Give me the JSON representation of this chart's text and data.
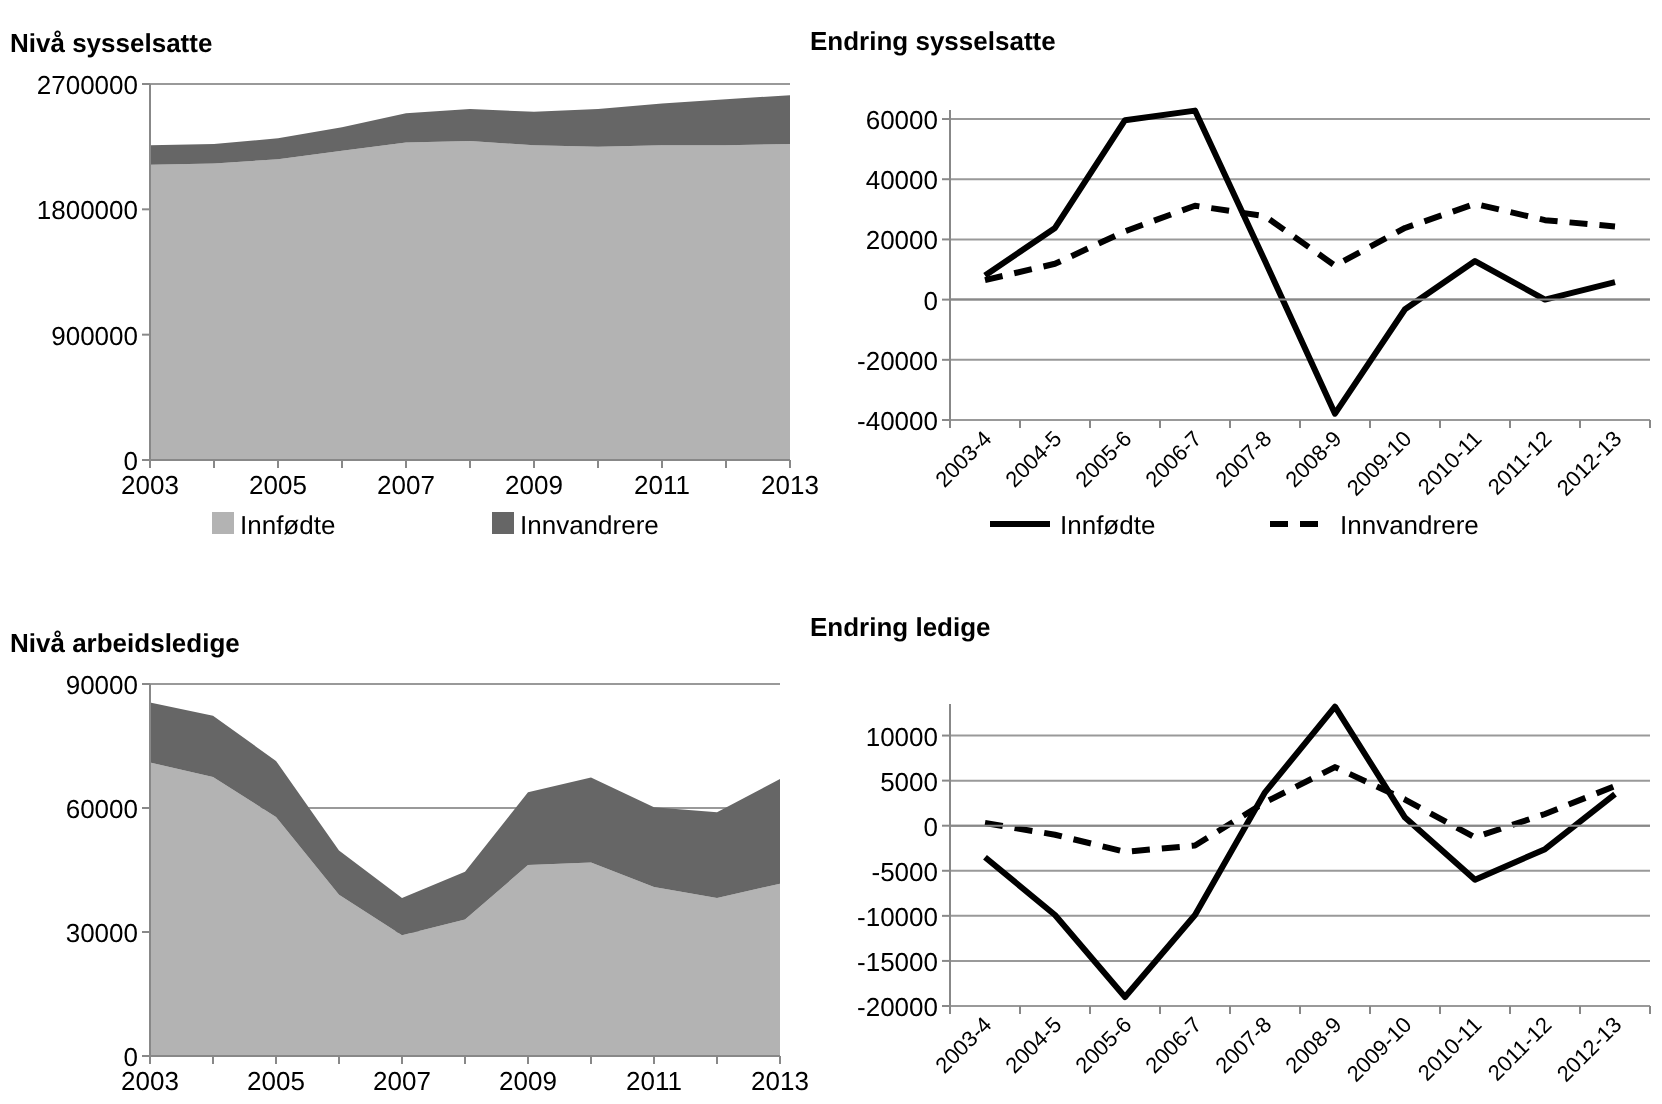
{
  "chart_data": [
    {
      "type": "area",
      "title": "Nivå sysselsatte",
      "stacked": true,
      "x": [
        2003,
        2004,
        2005,
        2006,
        2007,
        2008,
        2009,
        2010,
        2011,
        2012,
        2013
      ],
      "series": [
        {
          "name": "Innfødte",
          "color": "#b3b3b3",
          "values": [
            2120000,
            2130000,
            2160000,
            2220000,
            2280000,
            2290000,
            2260000,
            2250000,
            2260000,
            2260000,
            2270000
          ]
        },
        {
          "name": "Innvandrere",
          "color": "#666666",
          "values": [
            140000,
            140000,
            150000,
            170000,
            210000,
            230000,
            240000,
            270000,
            300000,
            330000,
            350000
          ]
        }
      ],
      "xlim": [
        2003,
        2013
      ],
      "xticks": [
        2003,
        {
          "value": 2004,
          "label": null
        },
        2005,
        {
          "value": 2006,
          "label": null
        },
        2007,
        {
          "value": 2008,
          "label": null
        },
        2009,
        {
          "value": 2010,
          "label": null
        },
        2011,
        {
          "value": 2012,
          "label": null
        },
        2013
      ],
      "ylim": [
        0,
        2700000
      ],
      "yticks": [
        0,
        900000,
        1800000,
        2700000
      ],
      "grid": "y",
      "legend": "bottom"
    },
    {
      "type": "line",
      "title": "Endring sysselsatte",
      "categories": [
        "2003-4",
        "2004-5",
        "2005-6",
        "2006-7",
        "2007-8",
        "2008-9",
        "2009-10",
        "2010-11",
        "2011-12",
        "2012-13"
      ],
      "series": [
        {
          "name": "Innfødte",
          "color": "#000000",
          "line_style": "solid",
          "values": [
            8000,
            23800,
            59600,
            62800,
            12800,
            -37900,
            -3200,
            12800,
            0,
            5800
          ]
        },
        {
          "name": "Innvandrere",
          "color": "#000000",
          "line_style": "dashed",
          "values": [
            6500,
            11900,
            22700,
            31200,
            27700,
            11300,
            23800,
            31800,
            26400,
            24300
          ]
        }
      ],
      "ylim": [
        -40000,
        63000
      ],
      "yticks": [
        -40000,
        -20000,
        0,
        20000,
        40000,
        60000
      ],
      "grid": "y",
      "legend": "bottom",
      "marker": "none"
    },
    {
      "type": "area",
      "title": "Nivå arbeidsledige",
      "stacked": true,
      "x": [
        2003,
        2004,
        2005,
        2006,
        2007,
        2008,
        2009,
        2010,
        2011,
        2012,
        2013
      ],
      "series": [
        {
          "color": "#b3b3b3",
          "values": [
            71000,
            67500,
            57800,
            39000,
            29200,
            33000,
            46200,
            46800,
            40900,
            38200,
            41700
          ]
        },
        {
          "color": "#666666",
          "values": [
            14500,
            14800,
            13600,
            10700,
            9000,
            11600,
            17600,
            20600,
            19300,
            20800,
            25300
          ]
        }
      ],
      "xlim": [
        2003,
        2013
      ],
      "xticks": [
        2003,
        {
          "value": 2004,
          "label": null
        },
        2005,
        {
          "value": 2006,
          "label": null
        },
        2007,
        {
          "value": 2008,
          "label": null
        },
        2009,
        {
          "value": 2010,
          "label": null
        },
        2011,
        {
          "value": 2012,
          "label": null
        },
        2013
      ],
      "ylim": [
        0,
        90000
      ],
      "yticks": [
        0,
        30000,
        60000,
        90000
      ],
      "grid": "y"
    },
    {
      "type": "line",
      "title": "Endring ledige",
      "categories": [
        "2003-4",
        "2004-5",
        "2005-6",
        "2006-7",
        "2007-8",
        "2008-9",
        "2009-10",
        "2010-11",
        "2011-12",
        "2012-13"
      ],
      "series": [
        {
          "color": "#000000",
          "line_style": "solid",
          "values": [
            -3500,
            -9900,
            -19000,
            -9900,
            3700,
            13200,
            900,
            -6000,
            -2600,
            3500
          ]
        },
        {
          "color": "#000000",
          "line_style": "dashed",
          "values": [
            300,
            -1000,
            -2900,
            -2200,
            2600,
            6500,
            2900,
            -1300,
            1300,
            4400
          ]
        }
      ],
      "ylim": [
        -20000,
        13500
      ],
      "yticks": [
        -20000,
        -15000,
        -10000,
        -5000,
        0,
        5000,
        10000
      ],
      "grid": "y",
      "marker": "none"
    }
  ]
}
